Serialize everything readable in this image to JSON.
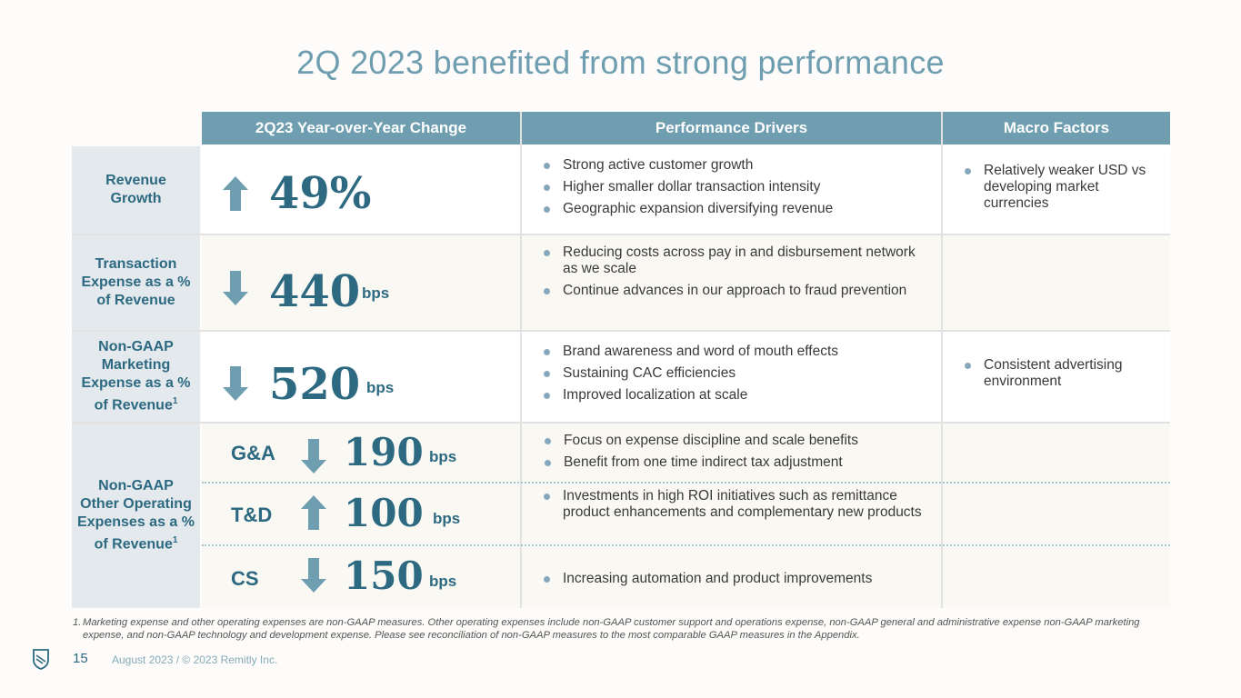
{
  "title": "2Q 2023 benefited from strong performance",
  "headers": {
    "change": "2Q23 Year-over-Year Change",
    "drivers": "Performance Drivers",
    "macro": "Macro Factors"
  },
  "rows": [
    {
      "label": "Revenue Growth",
      "direction": "up",
      "value": "49%",
      "unit": "",
      "drivers": [
        "Strong active customer growth",
        "Higher smaller dollar transaction intensity",
        "Geographic expansion diversifying revenue"
      ],
      "macro": [
        "Relatively weaker USD vs developing market currencies"
      ]
    },
    {
      "label": "Transaction Expense as a % of Revenue",
      "direction": "down",
      "value": "440",
      "unit": "bps",
      "drivers": [
        "Reducing costs across pay in and disbursement network as we scale",
        "Continue advances in our approach to fraud prevention"
      ],
      "macro": []
    },
    {
      "label": "Non-GAAP Marketing Expense as a % of Revenue",
      "footnote_mark": "1",
      "direction": "down",
      "value": "520",
      "unit": "bps",
      "drivers": [
        "Brand awareness and word of mouth effects",
        "Sustaining CAC efficiencies",
        "Improved localization at scale"
      ],
      "macro": [
        "Consistent advertising environment"
      ]
    }
  ],
  "other": {
    "label": "Non-GAAP Other Operating Expenses as a % of Revenue",
    "footnote_mark": "1",
    "items": [
      {
        "name": "G&A",
        "direction": "down",
        "value": "190",
        "unit": "bps",
        "drivers": [
          "Focus on expense discipline and scale benefits",
          "Benefit from one time indirect tax adjustment"
        ]
      },
      {
        "name": "T&D",
        "direction": "up",
        "value": "100",
        "unit": "bps",
        "drivers": [
          "Investments in high ROI initiatives such as remittance product enhancements and complementary new products"
        ]
      },
      {
        "name": "CS",
        "direction": "down",
        "value": "150",
        "unit": "bps",
        "drivers": [
          "Increasing automation and product improvements"
        ]
      }
    ]
  },
  "footnote": {
    "number": "1.",
    "text": "Marketing expense and other operating expenses are non-GAAP measures. Other operating expenses include non-GAAP customer support and operations expense, non-GAAP general and administrative expense non-GAAP marketing expense, and non-GAAP technology and development expense. Please see reconciliation of non-GAAP measures to the most comparable GAAP measures in the Appendix."
  },
  "page_number": "15",
  "footer_text": "August 2023 / © 2023 Remitly Inc.",
  "colors": {
    "accent": "#6e9eaf",
    "dark": "#2d6a82",
    "label_bg": "#e3e9ed"
  }
}
